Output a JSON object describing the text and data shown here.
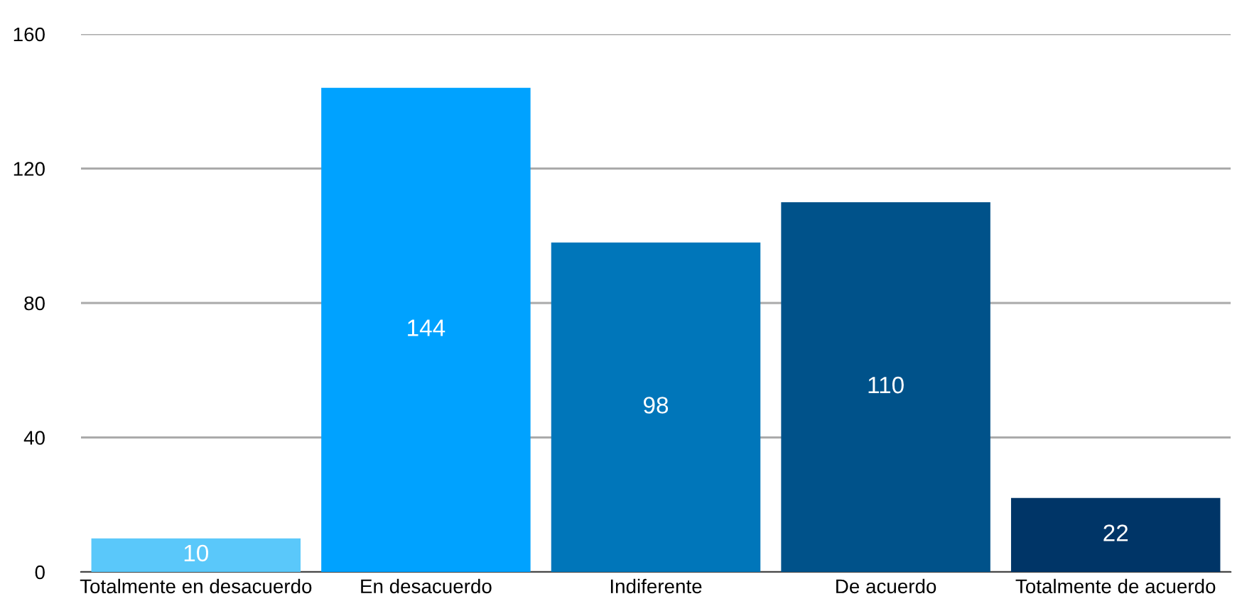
{
  "chart_data": {
    "type": "bar",
    "categories": [
      "Totalmente en desacuerdo",
      "En desacuerdo",
      "Indiferente",
      "De acuerdo",
      "Totalmente de acuerdo"
    ],
    "values": [
      10,
      144,
      98,
      110,
      22
    ],
    "colors": [
      "#5ac8fa",
      "#00a2ff",
      "#0076ba",
      "#00528a",
      "#003567"
    ],
    "ylim": [
      0,
      160
    ],
    "yticks": [
      0,
      40,
      80,
      120,
      160
    ],
    "grid": "y",
    "data_labels": true
  }
}
